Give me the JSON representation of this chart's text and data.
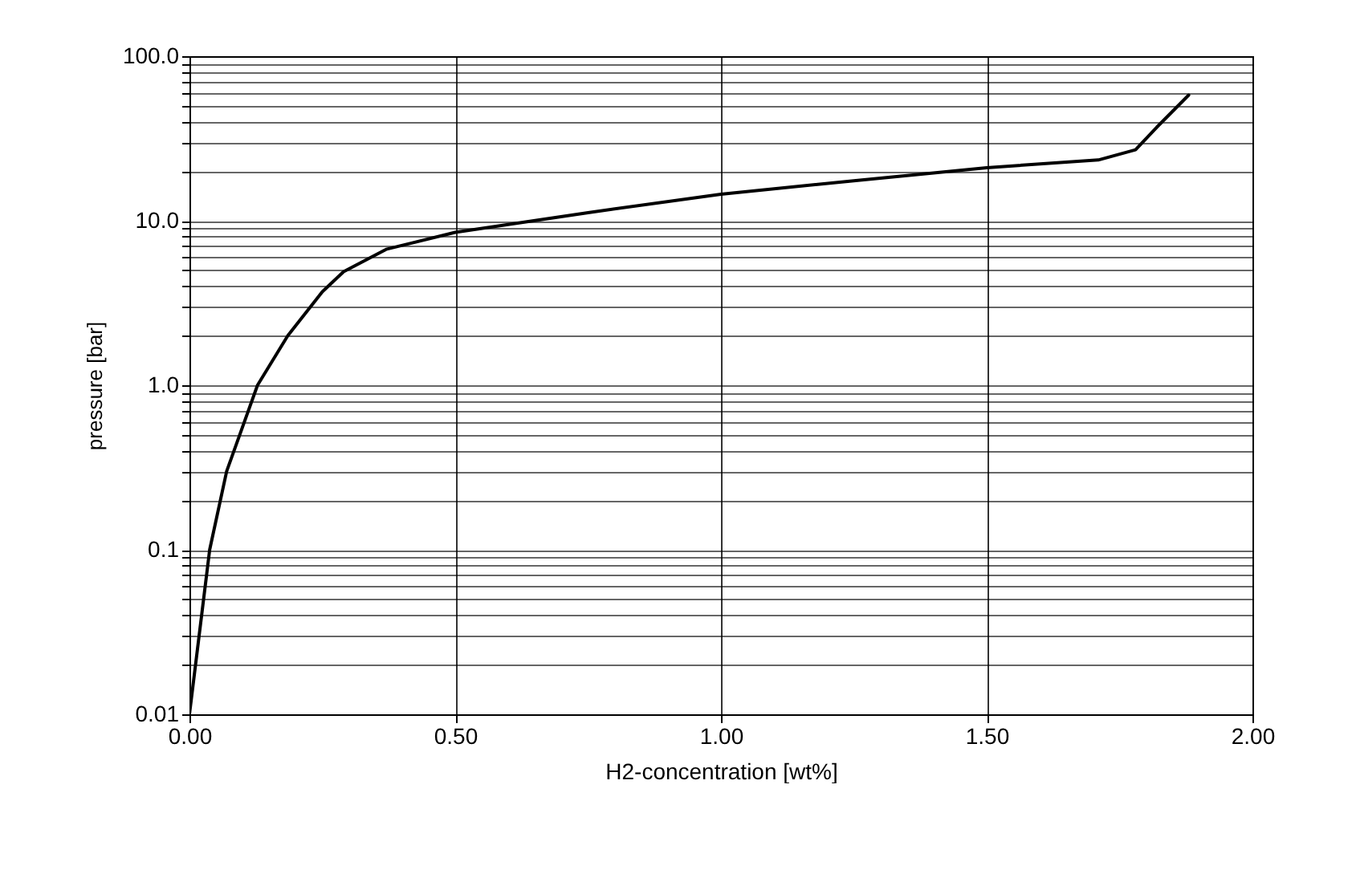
{
  "chart_data": {
    "type": "line",
    "xlabel": "H2-concentration [wt%]",
    "ylabel": "pressure [bar]",
    "log": "y",
    "grid": true,
    "marker": "none",
    "line_style": "solid",
    "x": [
      0,
      0.038,
      0.07,
      0.128,
      0.185,
      0.25,
      0.29,
      0.37,
      0.5,
      0.75,
      1.0,
      1.25,
      1.5,
      1.71,
      1.78,
      1.82,
      1.88
    ],
    "series": [
      {
        "color": "#000000",
        "values": [
          0.01,
          0.1,
          0.3,
          1.0,
          2.0,
          3.7,
          4.9,
          6.7,
          8.5,
          11.2,
          14.5,
          17.5,
          21,
          23.4,
          27,
          37,
          58
        ]
      }
    ],
    "xlim": [
      0,
      2
    ],
    "xticks": [
      {
        "value": 0,
        "label": "0.00"
      },
      {
        "value": 0.5,
        "label": "0.50"
      },
      {
        "value": 1,
        "label": "1.00"
      },
      {
        "value": 1.5,
        "label": "1.50"
      },
      {
        "value": 2,
        "label": "2.00"
      }
    ],
    "ylim": [
      0.01,
      100
    ],
    "yticks": [
      0.01,
      {
        "value": 0.02,
        "label": null
      },
      {
        "value": 0.03,
        "label": null
      },
      {
        "value": 0.04,
        "label": null
      },
      {
        "value": 0.05,
        "label": null
      },
      {
        "value": 0.06,
        "label": null
      },
      {
        "value": 0.07,
        "label": null
      },
      {
        "value": 0.08,
        "label": null
      },
      {
        "value": 0.09,
        "label": null
      },
      0.1,
      {
        "value": 0.2,
        "label": null
      },
      {
        "value": 0.3,
        "label": null
      },
      {
        "value": 0.4,
        "label": null
      },
      {
        "value": 0.5,
        "label": null
      },
      {
        "value": 0.6,
        "label": null
      },
      {
        "value": 0.7,
        "label": null
      },
      {
        "value": 0.8,
        "label": null
      },
      {
        "value": 0.9,
        "label": null
      },
      {
        "value": 1,
        "label": "1.0"
      },
      {
        "value": 2,
        "label": null
      },
      {
        "value": 3,
        "label": null
      },
      {
        "value": 4,
        "label": null
      },
      {
        "value": 5,
        "label": null
      },
      {
        "value": 6,
        "label": null
      },
      {
        "value": 7,
        "label": null
      },
      {
        "value": 8,
        "label": null
      },
      {
        "value": 9,
        "label": null
      },
      {
        "value": 10,
        "label": "10.0"
      },
      {
        "value": 20,
        "label": null
      },
      {
        "value": 30,
        "label": null
      },
      {
        "value": 40,
        "label": null
      },
      {
        "value": 50,
        "label": null
      },
      {
        "value": 60,
        "label": null
      },
      {
        "value": 70,
        "label": null
      },
      {
        "value": 80,
        "label": null
      },
      {
        "value": 90,
        "label": null
      },
      {
        "value": 100,
        "label": "100.0"
      }
    ]
  }
}
